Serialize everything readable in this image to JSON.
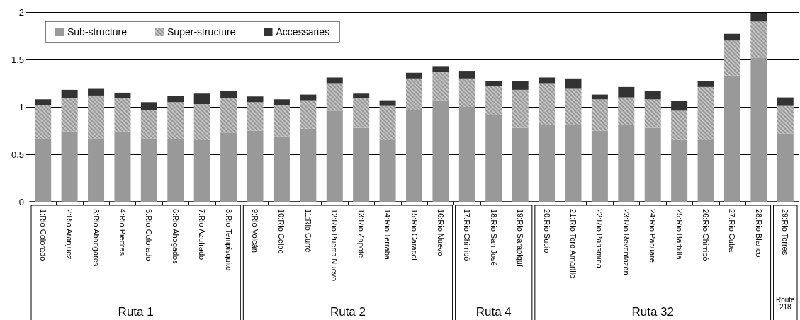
{
  "chart_data": {
    "type": "bar",
    "stacked": true,
    "categories": [
      "1:Rio Colorado",
      "2:Rio Aranjuez",
      "3:Rio Abangares",
      "4:Rio Piedras",
      "5:Rio Colorado",
      "6:Rio Ahogados",
      "7:Rio Azufrado",
      "8:Rio Tempisquito",
      "9:Rio Volcán",
      "10:Rio Ceibo",
      "11:Rio Curré",
      "12:Rio Puerto Nuevo",
      "13:Rio Zapote",
      "14:Rio Terraba",
      "15:Rio Caracol",
      "16:Rio Nuevo",
      "17:Rio Chirripó",
      "18:Rio San José",
      "19:Rio Sarapiquí",
      "20:Rio Sucio",
      "21:Rio Toro Amarillo",
      "22:Rio Parismina",
      "23:Rio Reventazón",
      "24:Rio Pacuare",
      "25:Rio Barbilla",
      "26:Rio Chirripó",
      "27:Rio Cuba",
      "28:Rio Blanco",
      "29:Rio Torres"
    ],
    "series": [
      {
        "name": "Sub-structure",
        "color": "#999999",
        "values": [
          0.67,
          0.74,
          0.67,
          0.74,
          0.67,
          0.66,
          0.65,
          0.73,
          0.75,
          0.69,
          0.77,
          0.96,
          0.78,
          0.65,
          0.97,
          1.07,
          1.0,
          0.91,
          0.78,
          0.81,
          0.81,
          0.75,
          0.81,
          0.78,
          0.65,
          0.65,
          1.33,
          1.52,
          0.72
        ]
      },
      {
        "name": "Super-structure",
        "color": "#c4c4c4",
        "values": [
          0.35,
          0.35,
          0.45,
          0.35,
          0.3,
          0.39,
          0.38,
          0.36,
          0.3,
          0.33,
          0.3,
          0.29,
          0.31,
          0.36,
          0.33,
          0.3,
          0.3,
          0.31,
          0.4,
          0.44,
          0.38,
          0.33,
          0.29,
          0.3,
          0.31,
          0.56,
          0.37,
          0.38,
          0.29
        ]
      },
      {
        "name": "Accessaries",
        "color": "#333333",
        "values": [
          0.06,
          0.09,
          0.07,
          0.06,
          0.08,
          0.07,
          0.11,
          0.08,
          0.06,
          0.06,
          0.06,
          0.06,
          0.05,
          0.06,
          0.06,
          0.06,
          0.08,
          0.05,
          0.09,
          0.06,
          0.11,
          0.05,
          0.11,
          0.09,
          0.1,
          0.06,
          0.07,
          0.09,
          0.09
        ]
      }
    ],
    "ylim": [
      0,
      2
    ],
    "yticks": [
      0,
      0.5,
      1,
      1.5,
      2
    ],
    "grid": "y",
    "legend": "top left",
    "annotations": [
      "Ruta 1",
      "Ruta 2",
      "Ruta 4",
      "Ruta 32",
      "Route 218"
    ]
  }
}
